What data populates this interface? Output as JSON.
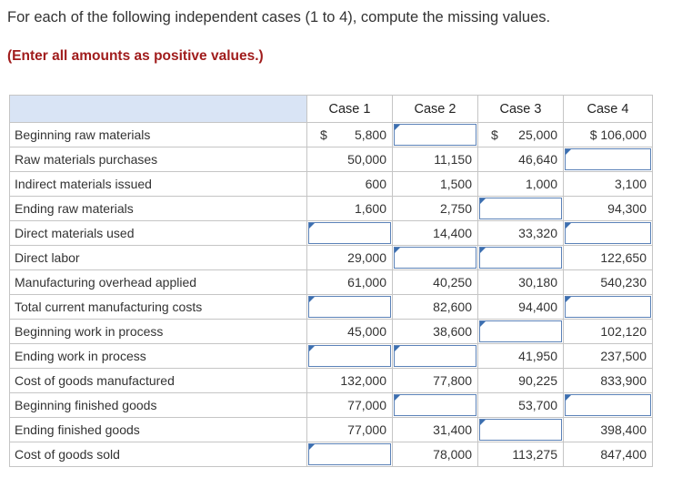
{
  "instruction": "For each of the following independent cases (1 to 4), compute the missing values.",
  "note": "(Enter all amounts as positive values.)",
  "columns": [
    "Case 1",
    "Case 2",
    "Case 3",
    "Case 4"
  ],
  "rows": [
    {
      "label": "Beginning raw materials",
      "cells": [
        {
          "value": "5,800",
          "dollar": "$"
        },
        {
          "input": true
        },
        {
          "value": "25,000",
          "dollar": "$"
        },
        {
          "value": "$ 106,000"
        }
      ]
    },
    {
      "label": "Raw materials purchases",
      "cells": [
        {
          "value": "50,000"
        },
        {
          "value": "11,150"
        },
        {
          "value": "46,640"
        },
        {
          "input": true
        }
      ]
    },
    {
      "label": "Indirect materials issued",
      "cells": [
        {
          "value": "600"
        },
        {
          "value": "1,500"
        },
        {
          "value": "1,000"
        },
        {
          "value": "3,100"
        }
      ]
    },
    {
      "label": "Ending raw materials",
      "cells": [
        {
          "value": "1,600"
        },
        {
          "value": "2,750"
        },
        {
          "input": true
        },
        {
          "value": "94,300"
        }
      ]
    },
    {
      "label": "Direct materials used",
      "cells": [
        {
          "input": true
        },
        {
          "value": "14,400"
        },
        {
          "value": "33,320"
        },
        {
          "input": true
        }
      ]
    },
    {
      "label": "Direct labor",
      "cells": [
        {
          "value": "29,000"
        },
        {
          "input": true
        },
        {
          "input": true
        },
        {
          "value": "122,650"
        }
      ]
    },
    {
      "label": "Manufacturing overhead applied",
      "cells": [
        {
          "value": "61,000"
        },
        {
          "value": "40,250"
        },
        {
          "value": "30,180"
        },
        {
          "value": "540,230"
        }
      ]
    },
    {
      "label": "Total current manufacturing costs",
      "cells": [
        {
          "input": true
        },
        {
          "value": "82,600"
        },
        {
          "value": "94,400"
        },
        {
          "input": true
        }
      ]
    },
    {
      "label": "Beginning work in process",
      "cells": [
        {
          "value": "45,000"
        },
        {
          "value": "38,600"
        },
        {
          "input": true
        },
        {
          "value": "102,120"
        }
      ]
    },
    {
      "label": "Ending work in process",
      "cells": [
        {
          "input": true
        },
        {
          "input": true
        },
        {
          "value": "41,950"
        },
        {
          "value": "237,500"
        }
      ]
    },
    {
      "label": "Cost of goods manufactured",
      "cells": [
        {
          "value": "132,000"
        },
        {
          "value": "77,800"
        },
        {
          "value": "90,225"
        },
        {
          "value": "833,900"
        }
      ]
    },
    {
      "label": "Beginning finished goods",
      "cells": [
        {
          "value": "77,000"
        },
        {
          "input": true
        },
        {
          "value": "53,700"
        },
        {
          "input": true
        }
      ]
    },
    {
      "label": "Ending finished goods",
      "cells": [
        {
          "value": "77,000"
        },
        {
          "value": "31,400"
        },
        {
          "input": true
        },
        {
          "value": "398,400"
        }
      ]
    },
    {
      "label": "Cost of goods sold",
      "cells": [
        {
          "input": true
        },
        {
          "value": "78,000"
        },
        {
          "value": "113,275"
        },
        {
          "value": "847,400"
        }
      ]
    }
  ]
}
